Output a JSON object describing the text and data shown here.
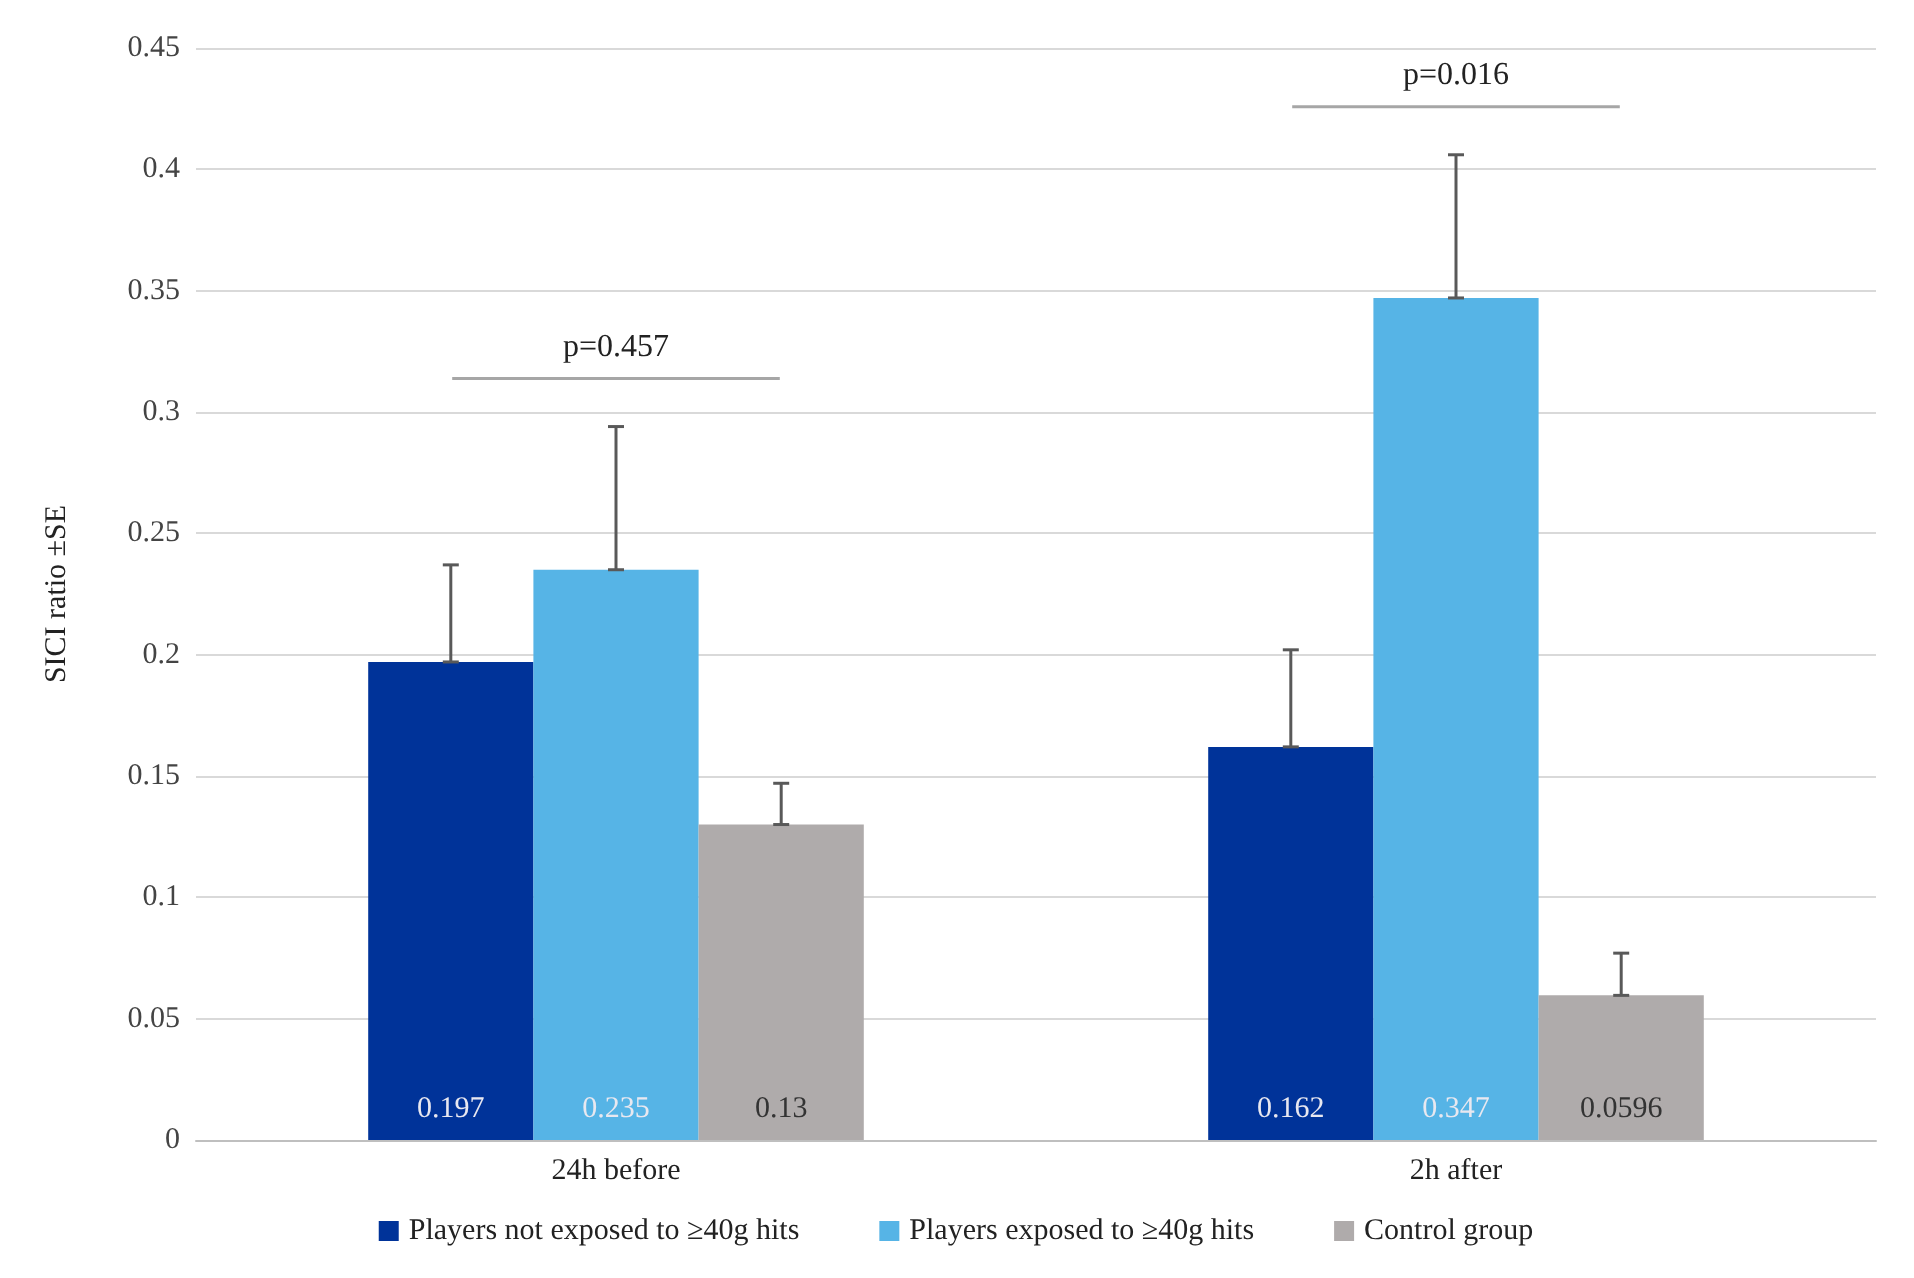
{
  "chart_data": {
    "type": "bar",
    "ylabel": "SICI ratio ±SE",
    "categories": [
      "24h before",
      "2h after"
    ],
    "series": [
      {
        "name": "Players not exposed to ≥40g hits",
        "color": "#003399",
        "values": [
          0.197,
          0.162
        ],
        "errors": [
          [
            0.197,
            0.237
          ],
          [
            0.162,
            0.202
          ]
        ]
      },
      {
        "name": "Players exposed to ≥40g hits",
        "color": "#56b4e6",
        "values": [
          0.235,
          0.347
        ],
        "errors": [
          [
            0.235,
            0.294
          ],
          [
            0.347,
            0.406
          ]
        ]
      },
      {
        "name": "Control group",
        "color": "#afabab",
        "values": [
          0.13,
          0.0596
        ],
        "errors": [
          [
            0.13,
            0.147
          ],
          [
            0.0596,
            0.077
          ]
        ]
      }
    ],
    "ylim": [
      0,
      0.45
    ],
    "yticks": [
      0,
      0.05,
      0.1,
      0.15,
      0.2,
      0.25,
      0.3,
      0.35,
      0.4,
      0.45
    ],
    "grid": "y",
    "legend": "bottom",
    "data_labels": true,
    "annotations": [
      "p=0.457",
      "p=0.016"
    ]
  }
}
